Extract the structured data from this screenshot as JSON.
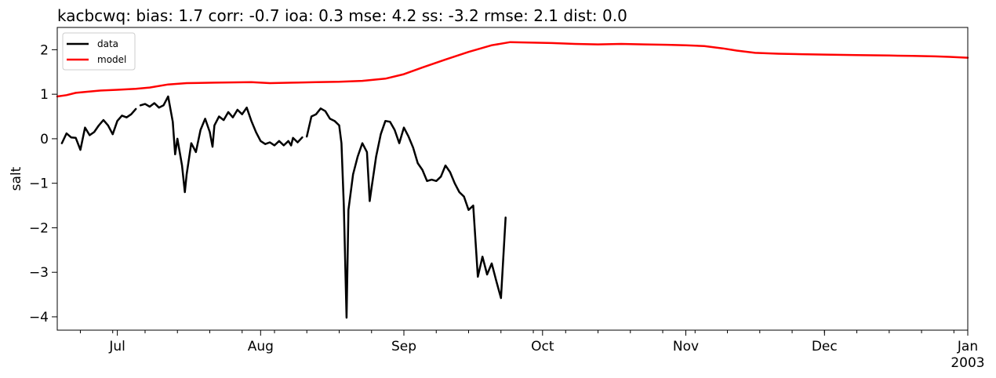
{
  "chart_data": {
    "type": "line",
    "title": "kacbcwq: bias: 1.7  corr: -0.7  ioa: 0.3  mse: 4.2  ss: -3.2  rmse: 2.1  dist: 0.0",
    "xlabel": "",
    "ylabel": "salt",
    "xlim": [
      "2002-06-18",
      "2003-01-01"
    ],
    "ylim": [
      -4.3,
      2.5
    ],
    "x_ticks": [
      {
        "date": "2002-07-01",
        "label": "Jul"
      },
      {
        "date": "2002-08-01",
        "label": "Aug"
      },
      {
        "date": "2002-09-01",
        "label": "Sep"
      },
      {
        "date": "2002-10-01",
        "label": "Oct"
      },
      {
        "date": "2002-11-01",
        "label": "Nov"
      },
      {
        "date": "2002-12-01",
        "label": "Dec"
      },
      {
        "date": "2003-01-01",
        "label": "Jan",
        "sublabel": "2003"
      }
    ],
    "y_ticks": [
      {
        "value": -4,
        "label": "−4"
      },
      {
        "value": -3,
        "label": "−3"
      },
      {
        "value": -2,
        "label": "−2"
      },
      {
        "value": -1,
        "label": "−1"
      },
      {
        "value": 0,
        "label": "0"
      },
      {
        "value": 1,
        "label": "1"
      },
      {
        "value": 2,
        "label": "2"
      }
    ],
    "legend": {
      "position": "top-left"
    },
    "grid": false,
    "series": [
      {
        "name": "data",
        "color": "#000000",
        "points": [
          [
            "2002-06-19",
            -0.1
          ],
          [
            "2002-06-20",
            0.12
          ],
          [
            "2002-06-21",
            0.03
          ],
          [
            "2002-06-22",
            0.02
          ],
          [
            "2002-06-23",
            -0.25
          ],
          [
            "2002-06-24",
            0.25
          ],
          [
            "2002-06-25",
            0.08
          ],
          [
            "2002-06-26",
            0.15
          ],
          [
            "2002-06-27",
            0.3
          ],
          [
            "2002-06-28",
            0.42
          ],
          [
            "2002-06-29",
            0.3
          ],
          [
            "2002-06-30",
            0.1
          ],
          [
            "2002-07-01",
            0.4
          ],
          [
            "2002-07-02",
            0.52
          ],
          [
            "2002-07-03",
            0.48
          ],
          [
            "2002-07-04",
            0.55
          ],
          [
            "2002-07-05",
            0.67
          ],
          null,
          [
            "2002-07-06",
            0.75
          ],
          [
            "2002-07-07",
            0.78
          ],
          [
            "2002-07-08",
            0.72
          ],
          [
            "2002-07-09",
            0.8
          ],
          [
            "2002-07-10",
            0.7
          ],
          [
            "2002-07-11",
            0.75
          ],
          [
            "2002-07-12",
            0.95
          ],
          [
            "2002-07-13",
            0.38
          ],
          [
            "2002-07-13.5",
            -0.35
          ],
          [
            "2002-07-14",
            0.0
          ],
          [
            "2002-07-15",
            -0.6
          ],
          [
            "2002-07-15.6",
            -1.2
          ],
          [
            "2002-07-16",
            -0.8
          ],
          [
            "2002-07-17",
            -0.1
          ],
          [
            "2002-07-18",
            -0.3
          ],
          [
            "2002-07-19",
            0.2
          ],
          [
            "2002-07-20",
            0.45
          ],
          [
            "2002-07-21",
            0.15
          ],
          [
            "2002-07-21.6",
            -0.18
          ],
          [
            "2002-07-22",
            0.3
          ],
          [
            "2002-07-23",
            0.5
          ],
          [
            "2002-07-24",
            0.42
          ],
          [
            "2002-07-25",
            0.6
          ],
          [
            "2002-07-26",
            0.48
          ],
          [
            "2002-07-27",
            0.65
          ],
          [
            "2002-07-28",
            0.55
          ],
          [
            "2002-07-29",
            0.7
          ],
          [
            "2002-07-30",
            0.4
          ],
          [
            "2002-07-31",
            0.15
          ],
          [
            "2002-08-01",
            -0.05
          ],
          [
            "2002-08-02",
            -0.12
          ],
          [
            "2002-08-03",
            -0.08
          ],
          [
            "2002-08-04",
            -0.15
          ],
          [
            "2002-08-05",
            -0.05
          ],
          [
            "2002-08-06",
            -0.15
          ],
          [
            "2002-08-07",
            -0.05
          ],
          [
            "2002-08-07.6",
            -0.15
          ],
          [
            "2002-08-08",
            0.02
          ],
          [
            "2002-08-09",
            -0.08
          ],
          [
            "2002-08-10",
            0.03
          ],
          null,
          [
            "2002-08-11",
            0.05
          ],
          [
            "2002-08-12",
            0.5
          ],
          [
            "2002-08-13",
            0.55
          ],
          [
            "2002-08-14",
            0.68
          ],
          [
            "2002-08-15",
            0.62
          ],
          [
            "2002-08-16",
            0.45
          ],
          [
            "2002-08-17",
            0.4
          ],
          [
            "2002-08-18",
            0.3
          ],
          [
            "2002-08-18.5",
            -0.1
          ],
          [
            "2002-08-19",
            -1.5
          ],
          [
            "2002-08-19.6",
            -4.02
          ],
          [
            "2002-08-20",
            -1.6
          ],
          [
            "2002-08-21",
            -0.8
          ],
          [
            "2002-08-22",
            -0.4
          ],
          [
            "2002-08-23",
            -0.1
          ],
          [
            "2002-08-24",
            -0.3
          ],
          [
            "2002-08-24.6",
            -1.4
          ],
          [
            "2002-08-25",
            -1.1
          ],
          [
            "2002-08-26",
            -0.4
          ],
          [
            "2002-08-27",
            0.1
          ],
          [
            "2002-08-28",
            0.4
          ],
          [
            "2002-08-29",
            0.38
          ],
          [
            "2002-08-30",
            0.2
          ],
          [
            "2002-08-31",
            -0.1
          ],
          [
            "2002-09-01",
            0.25
          ],
          [
            "2002-09-02",
            0.05
          ],
          [
            "2002-09-03",
            -0.2
          ],
          [
            "2002-09-04",
            -0.55
          ],
          [
            "2002-09-05",
            -0.7
          ],
          [
            "2002-09-06",
            -0.95
          ],
          [
            "2002-09-07",
            -0.92
          ],
          [
            "2002-09-08",
            -0.95
          ],
          [
            "2002-09-09",
            -0.85
          ],
          [
            "2002-09-10",
            -0.6
          ],
          [
            "2002-09-11",
            -0.75
          ],
          [
            "2002-09-12",
            -1.0
          ],
          [
            "2002-09-13",
            -1.2
          ],
          [
            "2002-09-14",
            -1.3
          ],
          [
            "2002-09-15",
            -1.6
          ],
          [
            "2002-09-16",
            -1.5
          ],
          [
            "2002-09-17",
            -3.1
          ],
          [
            "2002-09-18",
            -2.65
          ],
          [
            "2002-09-19",
            -3.05
          ],
          [
            "2002-09-20",
            -2.8
          ],
          [
            "2002-09-21",
            -3.2
          ],
          [
            "2002-09-22",
            -3.58
          ],
          [
            "2002-09-23",
            -1.77
          ]
        ]
      },
      {
        "name": "model",
        "color": "#ff0000",
        "points": [
          [
            "2002-06-18",
            0.95
          ],
          [
            "2002-06-20",
            0.98
          ],
          [
            "2002-06-22",
            1.03
          ],
          [
            "2002-06-24",
            1.05
          ],
          [
            "2002-06-27",
            1.08
          ],
          [
            "2002-07-01",
            1.1
          ],
          [
            "2002-07-05",
            1.12
          ],
          [
            "2002-07-08",
            1.15
          ],
          [
            "2002-07-12",
            1.22
          ],
          [
            "2002-07-16",
            1.25
          ],
          [
            "2002-07-22",
            1.26
          ],
          [
            "2002-07-30",
            1.27
          ],
          [
            "2002-08-03",
            1.25
          ],
          [
            "2002-08-08",
            1.26
          ],
          [
            "2002-08-13",
            1.27
          ],
          [
            "2002-08-18",
            1.28
          ],
          [
            "2002-08-23",
            1.3
          ],
          [
            "2002-08-28",
            1.35
          ],
          [
            "2002-09-01",
            1.45
          ],
          [
            "2002-09-05",
            1.6
          ],
          [
            "2002-09-10",
            1.78
          ],
          [
            "2002-09-15",
            1.95
          ],
          [
            "2002-09-20",
            2.1
          ],
          [
            "2002-09-24",
            2.17
          ],
          [
            "2002-09-28",
            2.16
          ],
          [
            "2002-10-03",
            2.15
          ],
          [
            "2002-10-08",
            2.13
          ],
          [
            "2002-10-13",
            2.12
          ],
          [
            "2002-10-18",
            2.13
          ],
          [
            "2002-10-23",
            2.12
          ],
          [
            "2002-10-28",
            2.11
          ],
          [
            "2002-11-01",
            2.1
          ],
          [
            "2002-11-05",
            2.08
          ],
          [
            "2002-11-09",
            2.03
          ],
          [
            "2002-11-12",
            1.98
          ],
          [
            "2002-11-16",
            1.93
          ],
          [
            "2002-11-21",
            1.91
          ],
          [
            "2002-11-26",
            1.9
          ],
          [
            "2002-12-01",
            1.89
          ],
          [
            "2002-12-08",
            1.88
          ],
          [
            "2002-12-15",
            1.87
          ],
          [
            "2002-12-20",
            1.86
          ],
          [
            "2002-12-25",
            1.85
          ],
          [
            "2002-12-28",
            1.84
          ],
          [
            "2003-01-01",
            1.82
          ]
        ]
      }
    ]
  }
}
